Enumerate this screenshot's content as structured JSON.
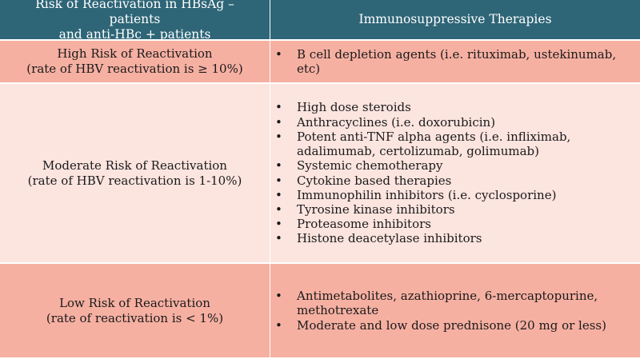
{
  "header": {
    "col1_line1": "Risk of Reactivation in HBsAg – patients",
    "col1_line2": "and anti-HBc + patients",
    "col2": "Immunosuppressive Therapies"
  },
  "rows": [
    {
      "risk_line1": "High Risk of Reactivation",
      "risk_line2": "(rate of HBV reactivation is ≥ 10%)",
      "therapies": [
        "B cell depletion agents (i.e. rituximab, ustekinumab, etc)"
      ]
    },
    {
      "risk_line1": "Moderate Risk of Reactivation",
      "risk_line2": "(rate of HBV reactivation is 1-10%)",
      "therapies": [
        "High dose steroids",
        "Anthracyclines (i.e. doxorubicin)",
        "Potent anti-TNF alpha agents (i.e. infliximab, adalimumab, certolizumab, golimumab)",
        "Systemic chemotherapy",
        "Cytokine based therapies",
        "Immunophilin inhibitors (i.e. cyclosporine)",
        "Tyrosine kinase inhibitors",
        "Proteasome inhibitors",
        "Histone deacetylase inhibitors"
      ]
    },
    {
      "risk_line1": "Low Risk of Reactivation",
      "risk_line2": "(rate of reactivation is < 1%)",
      "therapies": [
        "Antimetabolites, azathioprine, 6-mercaptopurine, methotrexate",
        "Moderate and low dose prednisone (20 mg or less)"
      ]
    }
  ],
  "bullet_glyph": "•"
}
